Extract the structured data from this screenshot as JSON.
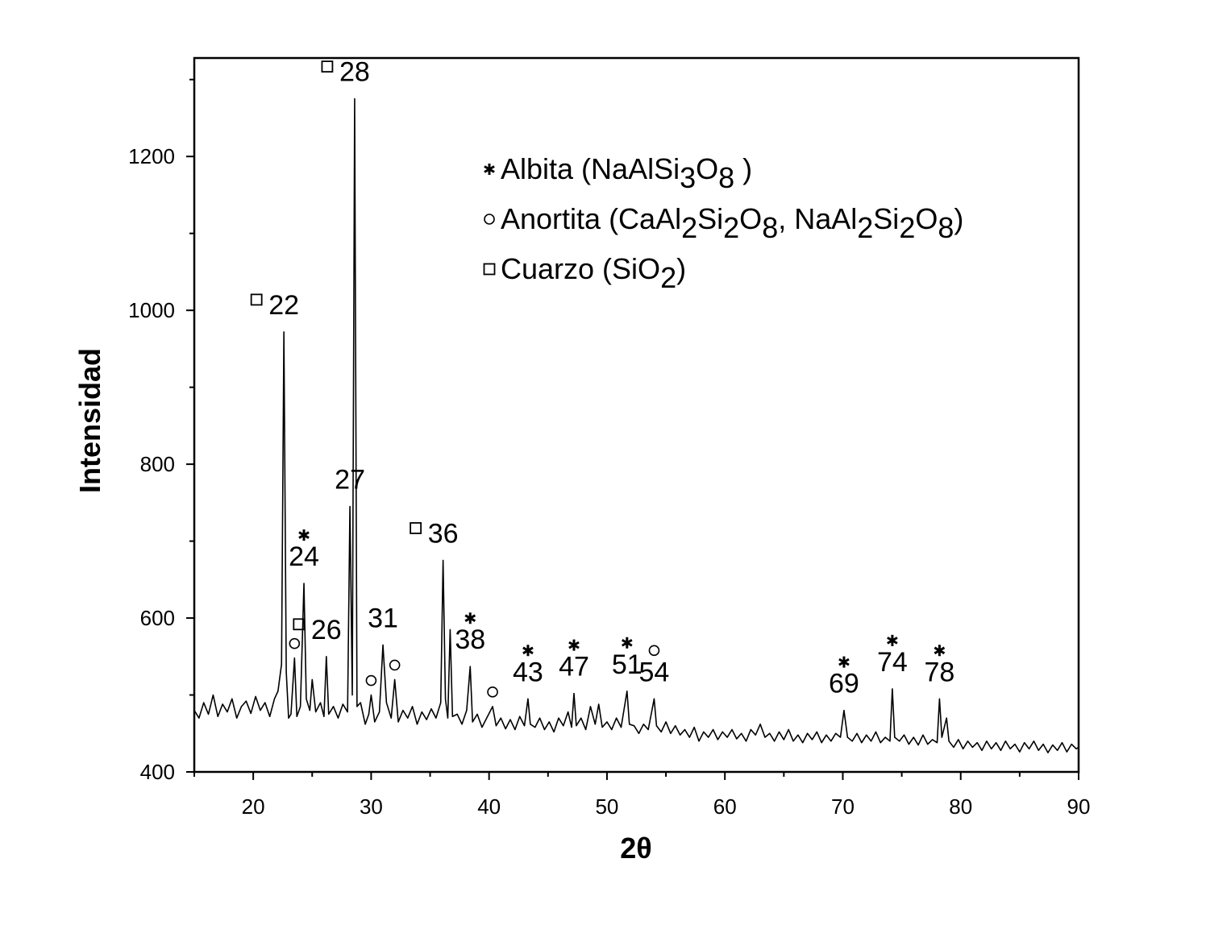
{
  "chart_data": {
    "type": "line",
    "xlabel": "2θ",
    "ylabel": "Intensidad",
    "color": "#000000",
    "xlim": [
      15,
      90
    ],
    "ylim": [
      400,
      1328
    ],
    "xticks": [
      20,
      30,
      40,
      50,
      60,
      70,
      80,
      90
    ],
    "xminorticks": [
      15,
      25,
      35,
      45,
      55,
      65,
      75,
      85
    ],
    "yticks": [
      400,
      600,
      800,
      1000,
      1200
    ],
    "yminorticks": [
      500,
      700,
      900,
      1100,
      1300
    ],
    "x": [
      15,
      15.4,
      15.8,
      16.2,
      16.6,
      17.0,
      17.4,
      17.8,
      18.2,
      18.6,
      19.0,
      19.4,
      19.8,
      20.2,
      20.6,
      21.0,
      21.4,
      21.8,
      22.1,
      22.4,
      22.6,
      22.8,
      23.0,
      23.2,
      23.5,
      23.7,
      24.0,
      24.3,
      24.5,
      24.8,
      25.0,
      25.3,
      25.7,
      26.0,
      26.2,
      26.4,
      26.8,
      27.2,
      27.6,
      28.0,
      28.2,
      28.4,
      28.6,
      28.8,
      29.1,
      29.5,
      29.8,
      30.0,
      30.3,
      30.7,
      31.0,
      31.3,
      31.7,
      32.0,
      32.3,
      32.7,
      33.1,
      33.5,
      33.9,
      34.3,
      34.7,
      35.1,
      35.5,
      35.9,
      36.1,
      36.3,
      36.5,
      36.7,
      36.9,
      37.3,
      37.7,
      38.1,
      38.4,
      38.6,
      39.0,
      39.4,
      39.8,
      40.3,
      40.6,
      41.0,
      41.4,
      41.8,
      42.2,
      42.6,
      43.0,
      43.3,
      43.5,
      43.9,
      44.3,
      44.7,
      45.1,
      45.5,
      45.9,
      46.3,
      46.7,
      47.0,
      47.2,
      47.4,
      47.8,
      48.2,
      48.6,
      49.0,
      49.3,
      49.6,
      50.0,
      50.4,
      50.8,
      51.2,
      51.7,
      51.9,
      52.3,
      52.7,
      53.1,
      53.5,
      54.0,
      54.2,
      54.6,
      55.0,
      55.4,
      55.8,
      56.2,
      56.6,
      57.0,
      57.4,
      57.8,
      58.2,
      58.6,
      59.0,
      59.4,
      59.8,
      60.2,
      60.6,
      61.0,
      61.4,
      61.8,
      62.2,
      62.6,
      63.0,
      63.4,
      63.8,
      64.2,
      64.6,
      65.0,
      65.4,
      65.8,
      66.2,
      66.6,
      67.0,
      67.4,
      67.8,
      68.2,
      68.6,
      69.0,
      69.4,
      69.8,
      70.1,
      70.4,
      70.8,
      71.2,
      71.6,
      72.0,
      72.4,
      72.8,
      73.2,
      73.6,
      74.0,
      74.2,
      74.4,
      74.8,
      75.2,
      75.6,
      76.0,
      76.4,
      76.8,
      77.2,
      77.6,
      78.0,
      78.2,
      78.4,
      78.8,
      79.0,
      79.4,
      79.8,
      80.2,
      80.6,
      81.0,
      81.4,
      81.8,
      82.2,
      82.6,
      83.0,
      83.4,
      83.8,
      84.2,
      84.6,
      85.0,
      85.4,
      85.8,
      86.2,
      86.6,
      87.0,
      87.4,
      87.8,
      88.2,
      88.6,
      89.0,
      89.4,
      89.8,
      90.0
    ],
    "values": [
      480,
      470,
      490,
      475,
      500,
      472,
      488,
      478,
      495,
      470,
      485,
      492,
      476,
      498,
      480,
      490,
      472,
      495,
      505,
      540,
      972,
      530,
      470,
      475,
      548,
      472,
      485,
      645,
      495,
      480,
      520,
      478,
      490,
      472,
      550,
      475,
      485,
      470,
      488,
      478,
      745,
      500,
      1275,
      485,
      490,
      462,
      475,
      500,
      465,
      478,
      565,
      490,
      470,
      520,
      465,
      480,
      470,
      485,
      462,
      478,
      468,
      482,
      470,
      490,
      675,
      495,
      470,
      585,
      472,
      475,
      462,
      480,
      537,
      465,
      475,
      458,
      470,
      485,
      460,
      470,
      456,
      468,
      455,
      472,
      460,
      495,
      462,
      458,
      470,
      455,
      465,
      452,
      470,
      460,
      478,
      458,
      502,
      460,
      470,
      455,
      485,
      462,
      488,
      458,
      465,
      455,
      470,
      458,
      505,
      462,
      460,
      450,
      462,
      455,
      495,
      460,
      452,
      465,
      450,
      460,
      448,
      455,
      445,
      458,
      440,
      452,
      445,
      455,
      442,
      452,
      445,
      455,
      443,
      450,
      440,
      455,
      448,
      462,
      445,
      450,
      440,
      452,
      442,
      455,
      440,
      448,
      438,
      450,
      442,
      452,
      438,
      448,
      440,
      450,
      445,
      480,
      445,
      440,
      450,
      438,
      448,
      440,
      452,
      438,
      445,
      440,
      508,
      445,
      440,
      448,
      436,
      445,
      435,
      448,
      436,
      442,
      438,
      495,
      445,
      470,
      440,
      432,
      442,
      430,
      440,
      432,
      438,
      428,
      440,
      430,
      438,
      428,
      440,
      430,
      436,
      426,
      438,
      430,
      440,
      428,
      436,
      425,
      435,
      428,
      438,
      426,
      436,
      430,
      432
    ],
    "annotations": [
      {
        "label": "22",
        "marker": "square",
        "x": 22.6,
        "y": 972
      },
      {
        "label": "28",
        "marker": "square",
        "x": 28.6,
        "y": 1275
      },
      {
        "label": "27",
        "x": 28.2,
        "y": 745
      },
      {
        "label": "24",
        "marker": "asterisk",
        "x": 24.3,
        "y": 645
      },
      {
        "label": "26",
        "marker": "square",
        "x": 26.2,
        "y": 550
      },
      {
        "label": "31",
        "x": 31.0,
        "y": 565
      },
      {
        "label": "36",
        "marker": "square",
        "x": 36.1,
        "y": 675
      },
      {
        "label": "38",
        "marker": "asterisk",
        "x": 38.4,
        "y": 537
      },
      {
        "label": "43",
        "marker": "asterisk",
        "x": 43.3,
        "y": 495
      },
      {
        "label": "47",
        "marker": "asterisk",
        "x": 47.2,
        "y": 502
      },
      {
        "label": "51",
        "marker": "asterisk",
        "x": 51.7,
        "y": 505
      },
      {
        "label": "54",
        "marker": "circle",
        "x": 54.0,
        "y": 495
      },
      {
        "label": "69",
        "marker": "asterisk",
        "x": 70.1,
        "y": 480
      },
      {
        "label": "74",
        "marker": "asterisk",
        "x": 74.2,
        "y": 508
      },
      {
        "label": "78",
        "marker": "asterisk",
        "x": 78.2,
        "y": 495
      },
      {
        "marker": "circle",
        "x": 23.5,
        "y": 548
      },
      {
        "marker": "circle",
        "x": 30.0,
        "y": 500
      },
      {
        "marker": "circle",
        "x": 32.0,
        "y": 520
      },
      {
        "marker": "circle",
        "x": 40.3,
        "y": 485
      }
    ],
    "legend": [
      {
        "marker": "asterisk",
        "label_parts": [
          "Albita (NaAlSi",
          "3",
          "O",
          "8",
          " )"
        ]
      },
      {
        "marker": "circle",
        "label_parts": [
          "Anortita (CaAl",
          "2",
          "Si",
          "2",
          "O",
          "8",
          ", NaAl",
          "2",
          "Si",
          "2",
          "O",
          "8",
          ")"
        ]
      },
      {
        "marker": "square",
        "label_parts": [
          "Cuarzo (SiO",
          "2",
          ")"
        ]
      }
    ]
  }
}
